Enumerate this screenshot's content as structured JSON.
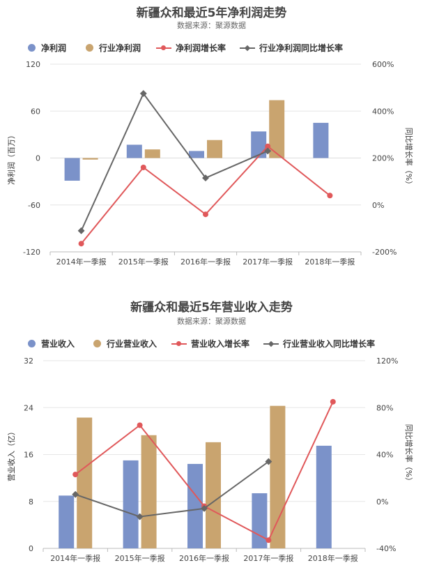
{
  "colors": {
    "company_bar": "#7b92c9",
    "industry_bar": "#c9a46f",
    "company_growth": "#e0585a",
    "industry_growth": "#666666"
  },
  "chart_data": [
    {
      "type": "bar",
      "title": "新疆众和最近5年净利润走势",
      "subtitle": "数据来源：聚源数据",
      "categories": [
        "2014年一季报",
        "2015年一季报",
        "2016年一季报",
        "2017年一季报",
        "2018年一季报"
      ],
      "ylabel": "净利润（百万）",
      "y2label": "同比增长率（%）",
      "ylim": [
        -120,
        120
      ],
      "y_ticks": [
        "120",
        "60",
        "0",
        "-60",
        "-120"
      ],
      "y2lim": [
        -200,
        600
      ],
      "y2_ticks": [
        "600%",
        "400%",
        "200%",
        "0%",
        "-200%"
      ],
      "series": [
        {
          "name": "净利润",
          "kind": "bar",
          "axis": "left",
          "values": [
            -29,
            17,
            9,
            34,
            45
          ]
        },
        {
          "name": "行业净利润",
          "kind": "bar",
          "axis": "left",
          "values": [
            -2,
            11,
            23,
            74,
            null
          ]
        },
        {
          "name": "净利润增长率",
          "kind": "line",
          "axis": "right",
          "values": [
            -165,
            160,
            -40,
            250,
            40
          ]
        },
        {
          "name": "行业净利润同比增长率",
          "kind": "line",
          "axis": "right",
          "values": [
            -110,
            475,
            115,
            230,
            null
          ]
        }
      ],
      "grid": true,
      "legend": "top"
    },
    {
      "type": "bar",
      "title": "新疆众和最近5年营业收入走势",
      "subtitle": "数据来源：聚源数据",
      "categories": [
        "2014年一季报",
        "2015年一季报",
        "2016年一季报",
        "2017年一季报",
        "2018年一季报"
      ],
      "ylabel": "营业收入（亿）",
      "y2label": "同比增长率（%）",
      "ylim": [
        0,
        32
      ],
      "y_ticks": [
        "32",
        "24",
        "16",
        "8",
        "0"
      ],
      "y2lim": [
        -40,
        120
      ],
      "y2_ticks": [
        "120%",
        "80%",
        "40%",
        "0%",
        "-40%"
      ],
      "series": [
        {
          "name": "营业收入",
          "kind": "bar",
          "axis": "left",
          "values": [
            9,
            15,
            14.4,
            9.4,
            17.5
          ]
        },
        {
          "name": "行业营业收入",
          "kind": "bar",
          "axis": "left",
          "values": [
            22.3,
            19.3,
            18.1,
            24.3,
            null
          ]
        },
        {
          "name": "营业收入增长率",
          "kind": "line",
          "axis": "right",
          "values": [
            23,
            65,
            -4,
            -33,
            85
          ]
        },
        {
          "name": "行业营业收入同比增长率",
          "kind": "line",
          "axis": "right",
          "values": [
            6,
            -13,
            -6,
            34,
            null
          ]
        }
      ],
      "grid": true,
      "legend": "top"
    }
  ]
}
